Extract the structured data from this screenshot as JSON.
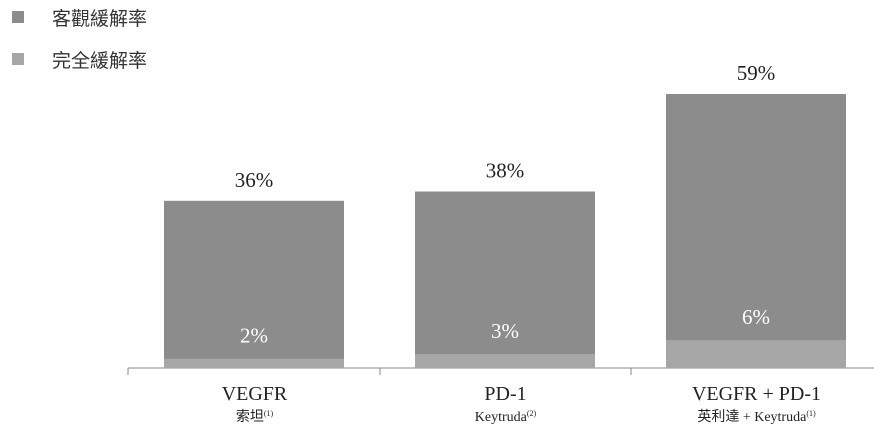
{
  "legend": [
    {
      "label": "客觀緩解率",
      "color": "#8c8c8c"
    },
    {
      "label": "完全緩解率",
      "color": "#a6a6a6"
    }
  ],
  "chart_data": {
    "type": "bar",
    "stacking": "overlay",
    "grid": false,
    "legend_position": "top-left",
    "ylim": [
      0,
      70
    ],
    "unit": "%",
    "categories": [
      {
        "name": "VEGFR",
        "sub": "索坦",
        "note": "(1)"
      },
      {
        "name": "PD-1",
        "sub": "Keytruda",
        "note": "(2)"
      },
      {
        "name": "VEGFR + PD-1",
        "sub": "英利達 + Keytruda",
        "note": "(1)"
      }
    ],
    "series": [
      {
        "name": "客觀緩解率",
        "color": "#8c8c8c",
        "values": [
          36,
          38,
          59
        ],
        "labels": [
          "36%",
          "38%",
          "59%"
        ]
      },
      {
        "name": "完全緩解率",
        "color": "#a6a6a6",
        "values": [
          2,
          3,
          6
        ],
        "labels": [
          "2%",
          "3%",
          "6%"
        ]
      }
    ]
  }
}
